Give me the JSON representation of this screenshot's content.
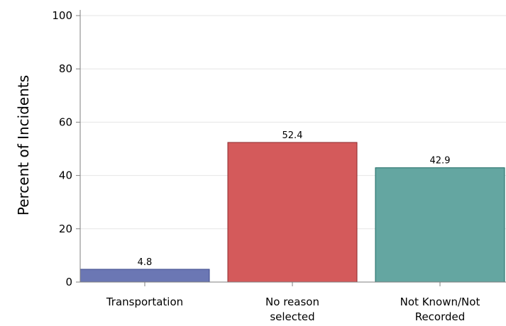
{
  "chart_data": {
    "type": "bar",
    "title": "",
    "xlabel": "",
    "ylabel": "Percent of Incidents",
    "ylim": [
      0,
      100
    ],
    "yticks": [
      0,
      20,
      40,
      60,
      80,
      100
    ],
    "grid": true,
    "legend": "none",
    "categories": [
      [
        "Transportation"
      ],
      [
        "No reason",
        "selected"
      ],
      [
        "Not Known/Not",
        "Recorded"
      ]
    ],
    "values": [
      4.8,
      52.4,
      42.9
    ],
    "value_labels": [
      "4.8",
      "52.4",
      "42.9"
    ],
    "colors": [
      "#6b77b4",
      "#d45a5b",
      "#64a6a1"
    ],
    "edge_colors": [
      "#3c4a8c",
      "#8c2a2e",
      "#1d6a63"
    ]
  }
}
